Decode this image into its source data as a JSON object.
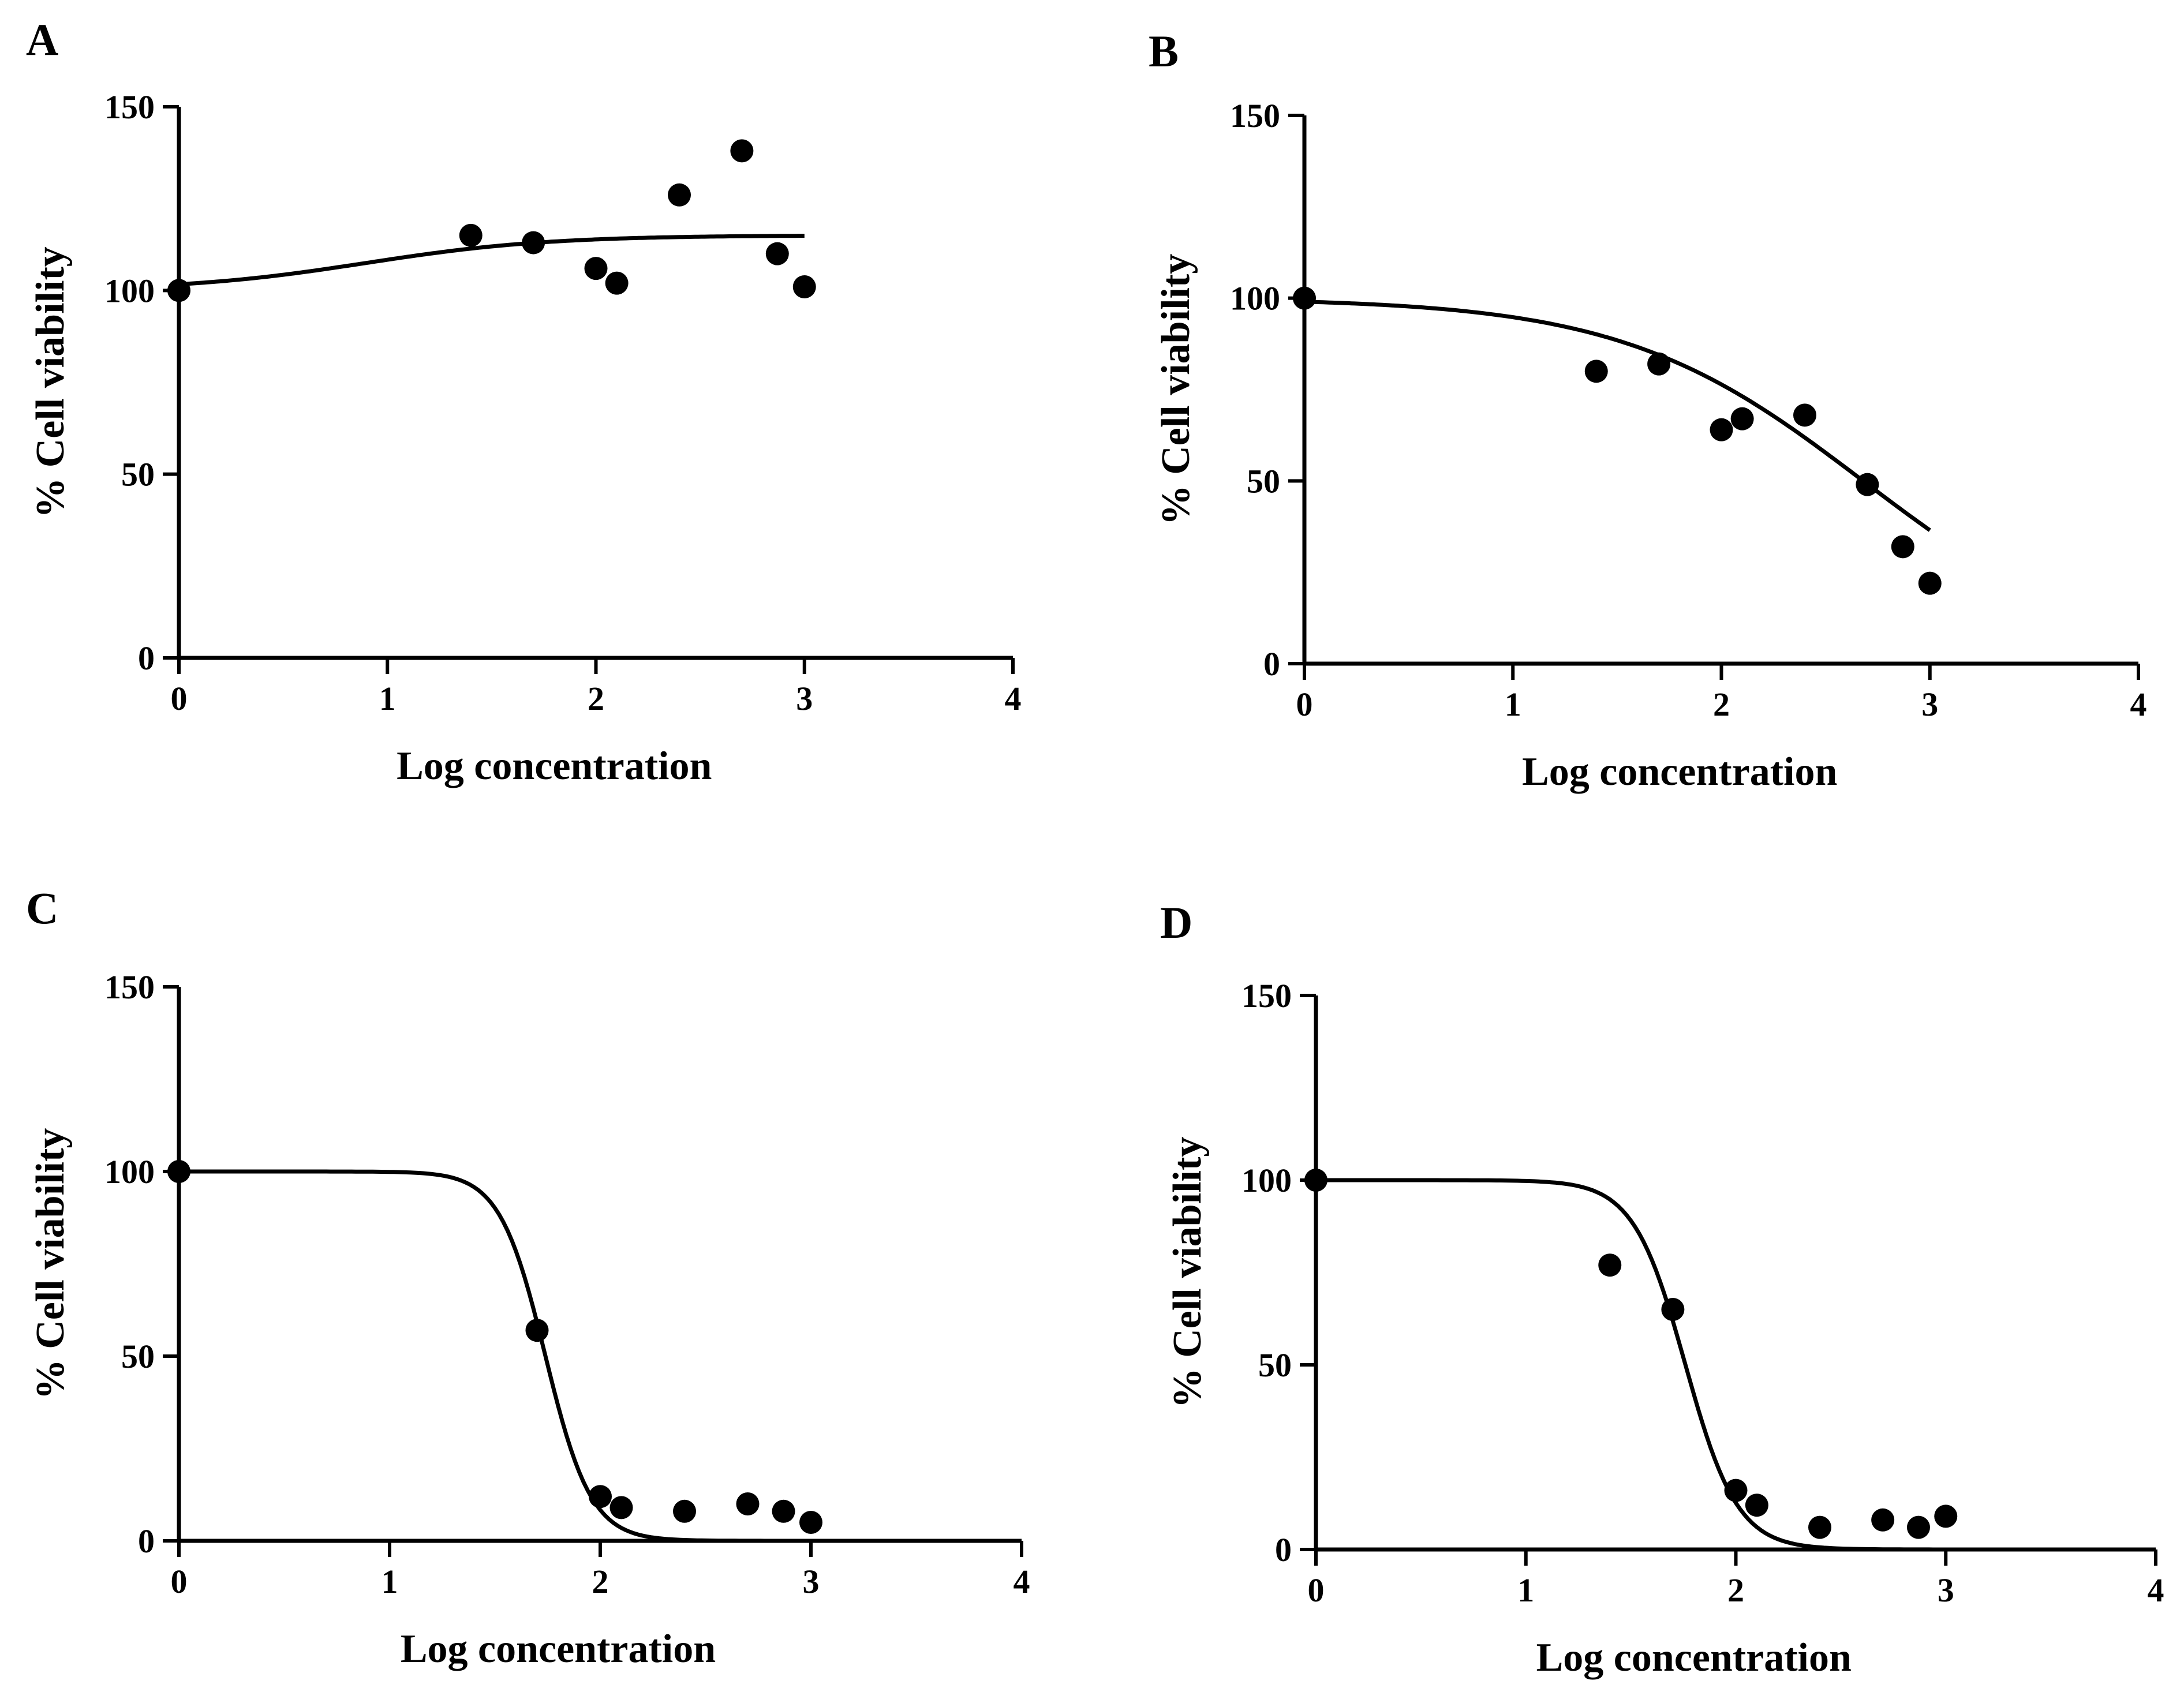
{
  "chart_data": [
    {
      "panel": "A",
      "type": "scatter",
      "xlabel": "Log concentration",
      "ylabel": "% Cell viability",
      "xlim": [
        0,
        4
      ],
      "ylim": [
        0,
        150
      ],
      "xticks": [
        "0",
        "1",
        "2",
        "3",
        "4"
      ],
      "yticks": [
        "0",
        "50",
        "100",
        "150"
      ],
      "points": [
        {
          "x": 0,
          "y": 100
        },
        {
          "x": 1.4,
          "y": 115
        },
        {
          "x": 1.7,
          "y": 113
        },
        {
          "x": 2.0,
          "y": 106
        },
        {
          "x": 2.1,
          "y": 102
        },
        {
          "x": 2.4,
          "y": 126
        },
        {
          "x": 2.7,
          "y": 138
        },
        {
          "x": 2.87,
          "y": 110
        },
        {
          "x": 3.0,
          "y": 101
        }
      ],
      "fit": {
        "bottom": 100,
        "top": 115,
        "logEC50": 0.9,
        "hill": 1.0,
        "direction": "increasing",
        "xmax": 3.0
      }
    },
    {
      "panel": "B",
      "type": "scatter",
      "xlabel": "Log concentration",
      "ylabel": "% Cell viability",
      "xlim": [
        0,
        4
      ],
      "ylim": [
        0,
        150
      ],
      "xticks": [
        "0",
        "1",
        "2",
        "3",
        "4"
      ],
      "yticks": [
        "0",
        "50",
        "100",
        "150"
      ],
      "points": [
        {
          "x": 0,
          "y": 100
        },
        {
          "x": 1.4,
          "y": 80
        },
        {
          "x": 1.7,
          "y": 82
        },
        {
          "x": 2.0,
          "y": 64
        },
        {
          "x": 2.1,
          "y": 67
        },
        {
          "x": 2.4,
          "y": 68
        },
        {
          "x": 2.7,
          "y": 49
        },
        {
          "x": 2.87,
          "y": 32
        },
        {
          "x": 3.0,
          "y": 22
        }
      ],
      "fit": {
        "bottom": 0,
        "top": 100,
        "logEC50": 2.68,
        "hill": 0.75,
        "direction": "decreasing",
        "xmax": 3.0
      }
    },
    {
      "panel": "C",
      "type": "scatter",
      "xlabel": "Log concentration",
      "ylabel": "% Cell viability",
      "xlim": [
        0,
        4
      ],
      "ylim": [
        0,
        150
      ],
      "xticks": [
        "0",
        "1",
        "2",
        "3",
        "4"
      ],
      "yticks": [
        "0",
        "50",
        "100",
        "150"
      ],
      "points": [
        {
          "x": 0,
          "y": 100
        },
        {
          "x": 1.7,
          "y": 57
        },
        {
          "x": 2.0,
          "y": 12
        },
        {
          "x": 2.1,
          "y": 9
        },
        {
          "x": 2.4,
          "y": 8
        },
        {
          "x": 2.7,
          "y": 10
        },
        {
          "x": 2.87,
          "y": 8
        },
        {
          "x": 3.0,
          "y": 5
        }
      ],
      "fit": {
        "bottom": 0,
        "top": 100,
        "logEC50": 1.74,
        "hill": 4.0,
        "direction": "decreasing",
        "xmax": 4.0
      }
    },
    {
      "panel": "D",
      "type": "scatter",
      "xlabel": "Log concentration",
      "ylabel": "% Cell viability",
      "xlim": [
        0,
        4
      ],
      "ylim": [
        0,
        150
      ],
      "xticks": [
        "0",
        "1",
        "2",
        "3",
        "4"
      ],
      "yticks": [
        "0",
        "50",
        "100",
        "150"
      ],
      "points": [
        {
          "x": 0,
          "y": 100
        },
        {
          "x": 1.4,
          "y": 77
        },
        {
          "x": 1.7,
          "y": 65
        },
        {
          "x": 2.0,
          "y": 16
        },
        {
          "x": 2.1,
          "y": 12
        },
        {
          "x": 2.4,
          "y": 6
        },
        {
          "x": 2.7,
          "y": 8
        },
        {
          "x": 2.87,
          "y": 6
        },
        {
          "x": 3.0,
          "y": 9
        }
      ],
      "fit": {
        "bottom": 0,
        "top": 100,
        "logEC50": 1.76,
        "hill": 3.5,
        "direction": "decreasing",
        "xmax": 4.0
      }
    }
  ]
}
